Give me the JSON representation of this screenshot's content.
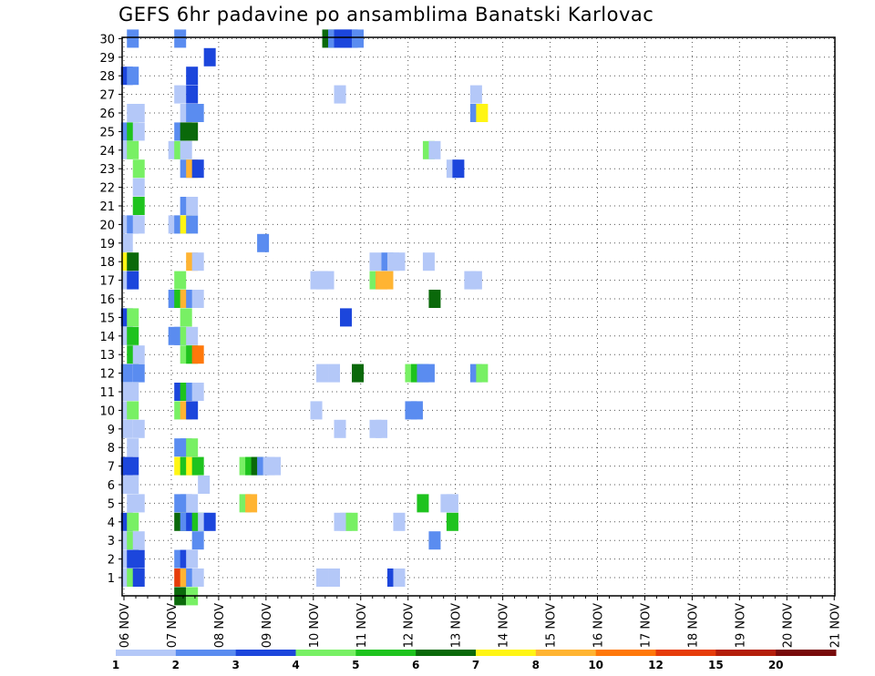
{
  "chart_data": {
    "type": "heatmap",
    "title": "GEFS 6hr padavine po ansamblima Banatski Karlovac",
    "xlabel": "",
    "ylabel": "",
    "x_tick_labels": [
      "06 NOV",
      "07 NOV",
      "08 NOV",
      "09 NOV",
      "10 NOV",
      "11 NOV",
      "12 NOV",
      "13 NOV",
      "14 NOV",
      "15 NOV",
      "16 NOV",
      "17 NOV",
      "18 NOV",
      "19 NOV",
      "20 NOV",
      "21 NOV"
    ],
    "y_tick_labels": [
      "1",
      "2",
      "3",
      "4",
      "5",
      "6",
      "7",
      "8",
      "9",
      "10",
      "11",
      "12",
      "13",
      "14",
      "15",
      "16",
      "17",
      "18",
      "19",
      "20",
      "21",
      "22",
      "23",
      "24",
      "25",
      "26",
      "27",
      "28",
      "29",
      "30"
    ],
    "x_unit": "6-hour step from 06 NOV 00 UTC",
    "xlim": [
      0,
      60
    ],
    "ylim": [
      0.5,
      30.5
    ],
    "grid": true,
    "colorbar": {
      "levels": [
        "1",
        "2",
        "3",
        "4",
        "5",
        "6",
        "7",
        "8",
        "10",
        "12",
        "15",
        "20"
      ],
      "colors": [
        "#b4c8f8",
        "#5a8cf0",
        "#1c46dc",
        "#78f064",
        "#1ec31e",
        "#0a690a",
        "#fff514",
        "#ffb432",
        "#ff780a",
        "#e63c0a",
        "#b41e0a",
        "#780a0a"
      ]
    },
    "cells": [
      [
        30,
        0.75,
        1
      ],
      [
        30,
        4.75,
        1
      ],
      [
        30,
        17.25,
        5
      ],
      [
        30,
        17.75,
        1
      ],
      [
        30,
        18.25,
        2
      ],
      [
        30,
        18.75,
        2
      ],
      [
        30,
        19.25,
        2
      ],
      [
        30,
        19.75,
        1
      ],
      [
        29,
        7.25,
        2
      ],
      [
        28,
        0.25,
        2
      ],
      [
        28,
        0.75,
        1
      ],
      [
        28,
        5.75,
        2
      ],
      [
        27,
        4.75,
        0
      ],
      [
        27,
        5.75,
        2
      ],
      [
        27,
        18.25,
        0
      ],
      [
        27,
        29.75,
        0
      ],
      [
        26,
        0.75,
        0
      ],
      [
        26,
        1.25,
        0
      ],
      [
        26,
        5.25,
        0
      ],
      [
        26,
        5.75,
        1
      ],
      [
        26,
        6.25,
        1
      ],
      [
        26,
        29.75,
        1
      ],
      [
        26,
        30.25,
        6
      ],
      [
        25,
        0.25,
        1
      ],
      [
        25,
        0.75,
        4
      ],
      [
        25,
        1.25,
        0
      ],
      [
        25,
        4.75,
        1
      ],
      [
        25,
        5.25,
        5
      ],
      [
        25,
        5.75,
        5
      ],
      [
        24,
        0.25,
        0
      ],
      [
        24,
        0.75,
        3
      ],
      [
        24,
        4.25,
        0
      ],
      [
        24,
        4.75,
        3
      ],
      [
        24,
        5.25,
        0
      ],
      [
        24,
        25.75,
        3
      ],
      [
        24,
        26.25,
        0
      ],
      [
        23,
        1.25,
        3
      ],
      [
        23,
        5.25,
        1
      ],
      [
        23,
        5.75,
        7
      ],
      [
        23,
        6.25,
        2
      ],
      [
        23,
        27.75,
        0
      ],
      [
        23,
        28.25,
        2
      ],
      [
        22,
        1.25,
        0
      ],
      [
        21,
        1.25,
        4
      ],
      [
        21,
        5.25,
        1
      ],
      [
        21,
        5.75,
        0
      ],
      [
        20,
        0.25,
        0
      ],
      [
        20,
        0.75,
        1
      ],
      [
        20,
        1.25,
        0
      ],
      [
        20,
        4.25,
        0
      ],
      [
        20,
        4.75,
        1
      ],
      [
        20,
        5.25,
        6
      ],
      [
        20,
        5.75,
        1
      ],
      [
        19,
        0.25,
        0
      ],
      [
        19,
        11.75,
        1
      ],
      [
        18,
        0.25,
        6
      ],
      [
        18,
        0.75,
        5
      ],
      [
        18,
        5.75,
        7
      ],
      [
        18,
        6.25,
        0
      ],
      [
        18,
        21.25,
        0
      ],
      [
        18,
        22.25,
        1
      ],
      [
        18,
        22.75,
        0
      ],
      [
        18,
        23.25,
        0
      ],
      [
        18,
        25.75,
        0
      ],
      [
        17,
        0.25,
        0
      ],
      [
        17,
        0.75,
        2
      ],
      [
        17,
        4.75,
        3
      ],
      [
        17,
        16.25,
        0
      ],
      [
        17,
        16.75,
        0
      ],
      [
        17,
        17.25,
        0
      ],
      [
        17,
        21.25,
        3
      ],
      [
        17,
        21.75,
        7
      ],
      [
        17,
        22.25,
        7
      ],
      [
        17,
        29.25,
        0
      ],
      [
        17,
        29.75,
        0
      ],
      [
        16,
        4.25,
        1
      ],
      [
        16,
        4.75,
        4
      ],
      [
        16,
        5.25,
        7
      ],
      [
        16,
        5.75,
        1
      ],
      [
        16,
        6.25,
        0
      ],
      [
        16,
        26.25,
        5
      ],
      [
        15,
        0.25,
        2
      ],
      [
        15,
        0.75,
        3
      ],
      [
        15,
        5.25,
        3
      ],
      [
        15,
        18.75,
        2
      ],
      [
        14,
        0.25,
        0
      ],
      [
        14,
        0.75,
        4
      ],
      [
        14,
        4.25,
        1
      ],
      [
        14,
        4.75,
        1
      ],
      [
        14,
        5.25,
        3
      ],
      [
        14,
        5.75,
        0
      ],
      [
        13,
        0.75,
        4
      ],
      [
        13,
        1.25,
        0
      ],
      [
        13,
        5.25,
        3
      ],
      [
        13,
        5.75,
        4
      ],
      [
        13,
        6.25,
        8
      ],
      [
        12,
        0.25,
        1
      ],
      [
        12,
        1.25,
        1
      ],
      [
        12,
        16.75,
        0
      ],
      [
        12,
        17.75,
        0
      ],
      [
        12,
        19.75,
        5
      ],
      [
        12,
        24.25,
        3
      ],
      [
        12,
        24.75,
        4
      ],
      [
        12,
        25.25,
        1
      ],
      [
        12,
        25.75,
        1
      ],
      [
        12,
        29.75,
        1
      ],
      [
        12,
        30.25,
        3
      ],
      [
        11,
        0.25,
        0
      ],
      [
        11,
        0.75,
        0
      ],
      [
        11,
        4.75,
        2
      ],
      [
        11,
        5.25,
        4
      ],
      [
        11,
        5.75,
        1
      ],
      [
        11,
        6.25,
        0
      ],
      [
        10,
        0.25,
        0
      ],
      [
        10,
        0.75,
        3
      ],
      [
        10,
        4.75,
        3
      ],
      [
        10,
        5.25,
        7
      ],
      [
        10,
        5.75,
        2
      ],
      [
        10,
        16.25,
        0
      ],
      [
        10,
        24.25,
        1
      ],
      [
        10,
        24.75,
        1
      ],
      [
        9,
        0.25,
        0
      ],
      [
        9,
        1.25,
        0
      ],
      [
        9,
        18.25,
        0
      ],
      [
        9,
        21.25,
        0
      ],
      [
        9,
        21.75,
        0
      ],
      [
        8,
        0.75,
        0
      ],
      [
        8,
        4.75,
        1
      ],
      [
        8,
        5.25,
        1
      ],
      [
        8,
        5.75,
        3
      ],
      [
        7,
        0.25,
        2
      ],
      [
        7,
        0.75,
        2
      ],
      [
        7,
        4.75,
        6
      ],
      [
        7,
        5.25,
        4
      ],
      [
        7,
        5.75,
        6
      ],
      [
        7,
        6.25,
        4
      ],
      [
        7,
        10.25,
        3
      ],
      [
        7,
        10.75,
        4
      ],
      [
        7,
        11.25,
        5
      ],
      [
        7,
        11.75,
        1
      ],
      [
        7,
        12.25,
        0
      ],
      [
        7,
        12.75,
        0
      ],
      [
        6,
        0.25,
        0
      ],
      [
        6,
        0.75,
        0
      ],
      [
        6,
        6.75,
        0
      ],
      [
        5,
        0.75,
        0
      ],
      [
        5,
        1.25,
        0
      ],
      [
        5,
        4.75,
        1
      ],
      [
        5,
        5.25,
        1
      ],
      [
        5,
        5.75,
        0
      ],
      [
        5,
        10.25,
        3
      ],
      [
        5,
        10.75,
        7
      ],
      [
        5,
        25.25,
        4
      ],
      [
        5,
        27.25,
        0
      ],
      [
        5,
        27.75,
        0
      ],
      [
        4,
        0.25,
        2
      ],
      [
        4,
        0.75,
        3
      ],
      [
        4,
        4.75,
        5
      ],
      [
        4,
        5.25,
        1
      ],
      [
        4,
        5.75,
        2
      ],
      [
        4,
        6.25,
        4
      ],
      [
        4,
        6.75,
        0
      ],
      [
        4,
        7.25,
        2
      ],
      [
        4,
        18.25,
        0
      ],
      [
        4,
        18.75,
        0
      ],
      [
        4,
        19.25,
        3
      ],
      [
        4,
        23.25,
        0
      ],
      [
        4,
        27.75,
        4
      ],
      [
        3,
        0.25,
        0
      ],
      [
        3,
        0.75,
        3
      ],
      [
        3,
        1.25,
        0
      ],
      [
        3,
        6.25,
        1
      ],
      [
        3,
        26.25,
        1
      ],
      [
        2,
        0.25,
        0
      ],
      [
        2,
        0.75,
        2
      ],
      [
        2,
        1.25,
        2
      ],
      [
        2,
        4.75,
        1
      ],
      [
        2,
        5.25,
        2
      ],
      [
        2,
        5.75,
        0
      ],
      [
        1,
        0.25,
        0
      ],
      [
        1,
        0.75,
        3
      ],
      [
        1,
        1.25,
        2
      ],
      [
        1,
        4.75,
        9
      ],
      [
        1,
        5.25,
        7
      ],
      [
        1,
        5.75,
        1
      ],
      [
        1,
        6.25,
        0
      ],
      [
        1,
        16.75,
        0
      ],
      [
        1,
        17.75,
        0
      ],
      [
        1,
        22.75,
        2
      ],
      [
        1,
        23.25,
        0
      ],
      [
        0,
        4.75,
        5
      ],
      [
        0,
        5.75,
        3
      ]
    ]
  }
}
